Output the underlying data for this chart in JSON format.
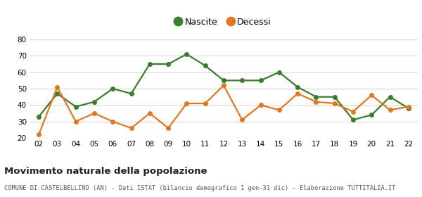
{
  "years": [
    "02",
    "03",
    "04",
    "05",
    "06",
    "07",
    "08",
    "09",
    "10",
    "11",
    "12",
    "13",
    "14",
    "15",
    "16",
    "17",
    "18",
    "19",
    "20",
    "21",
    "22"
  ],
  "nascite": [
    33,
    47,
    39,
    42,
    50,
    47,
    65,
    65,
    71,
    64,
    55,
    55,
    55,
    60,
    51,
    45,
    45,
    31,
    34,
    45,
    38
  ],
  "decessi": [
    22,
    51,
    30,
    35,
    30,
    26,
    35,
    26,
    41,
    41,
    52,
    31,
    40,
    37,
    47,
    42,
    41,
    36,
    46,
    37,
    39
  ],
  "nascite_color": "#3a7d2c",
  "decessi_color": "#e07820",
  "bg_color": "#ffffff",
  "grid_color": "#d8d8d8",
  "ylim": [
    20,
    80
  ],
  "yticks": [
    20,
    30,
    40,
    50,
    60,
    70,
    80
  ],
  "title": "Movimento naturale della popolazione",
  "subtitle": "COMUNE DI CASTELBELLINO (AN) - Dati ISTAT (bilancio demografico 1 gen-31 dic) - Elaborazione TUTTITALIA.IT",
  "legend_nascite": "Nascite",
  "legend_decessi": "Decessi",
  "marker_size": 4,
  "line_width": 1.6
}
